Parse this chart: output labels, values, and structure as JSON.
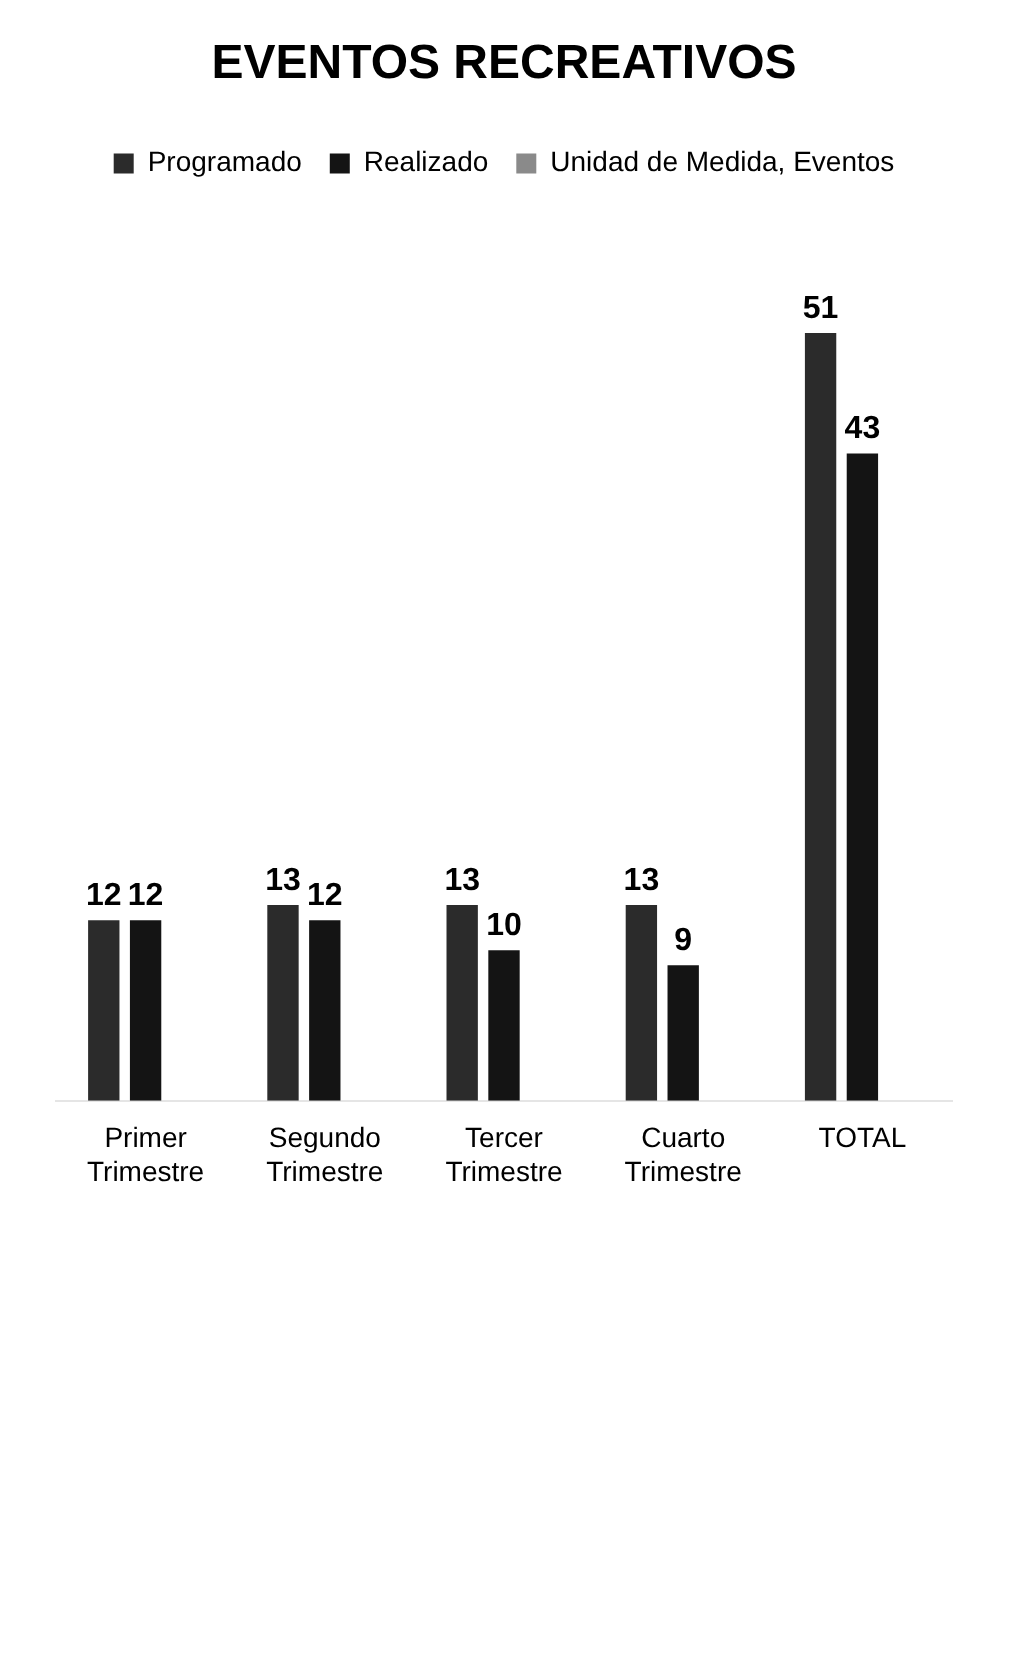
{
  "chart_data": {
    "type": "bar",
    "title": "EVENTOS RECREATIVOS",
    "categories": [
      "Primer Trimestre",
      "Segundo Trimestre",
      "Tercer Trimestre",
      "Cuarto Trimestre",
      "TOTAL"
    ],
    "series": [
      {
        "name": "Programado",
        "color": "#2b2b2b",
        "values": [
          12,
          13,
          13,
          13,
          51
        ]
      },
      {
        "name": "Realizado",
        "color": "#141414",
        "values": [
          12,
          12,
          10,
          9,
          43
        ]
      },
      {
        "name": "Unidad de Medida, Eventos",
        "color": "#8a8a8a",
        "values": [
          null,
          null,
          null,
          null,
          null
        ]
      }
    ],
    "data_labels": true,
    "legend": "top",
    "grid": false
  }
}
